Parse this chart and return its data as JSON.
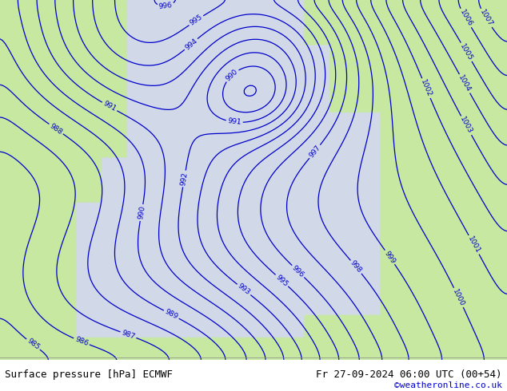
{
  "title_left": "Surface pressure [hPa] ECMWF",
  "title_right": "Fr 27-09-2024 06:00 UTC (00+54)",
  "copyright": "©weatheronline.co.uk",
  "background_color": "#d0d8e8",
  "land_color": "#c8e8a0",
  "coast_color": "#a0a0a0",
  "contour_color": "#0000cc",
  "contour_label_color": "#0000cc",
  "pressure_min": 984,
  "pressure_max": 1010,
  "pressure_step": 1,
  "figsize": [
    6.34,
    4.9
  ],
  "dpi": 100,
  "bottom_bar_color": "#e8e8e8",
  "bottom_bar_height": 0.38
}
